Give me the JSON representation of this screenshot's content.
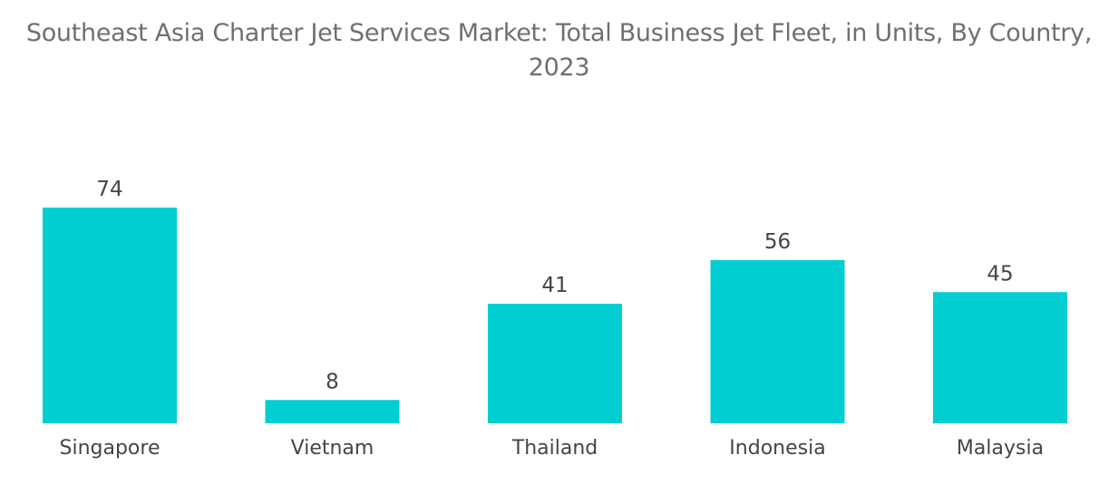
{
  "chart_data": {
    "type": "bar",
    "title_lines": [
      "Southeast Asia Charter Jet Services Market: Total Business Jet Fleet, in Units, By Country,",
      "2023"
    ],
    "categories": [
      "Singapore",
      "Vietnam",
      "Thailand",
      "Indonesia",
      "Malaysia"
    ],
    "values": [
      74,
      8,
      41,
      56,
      45
    ],
    "xlabel": "",
    "ylabel": "",
    "ylim": [
      0,
      74
    ],
    "grid": false,
    "legend": "none",
    "data_labels": true,
    "bar_color": "#00ced1"
  }
}
